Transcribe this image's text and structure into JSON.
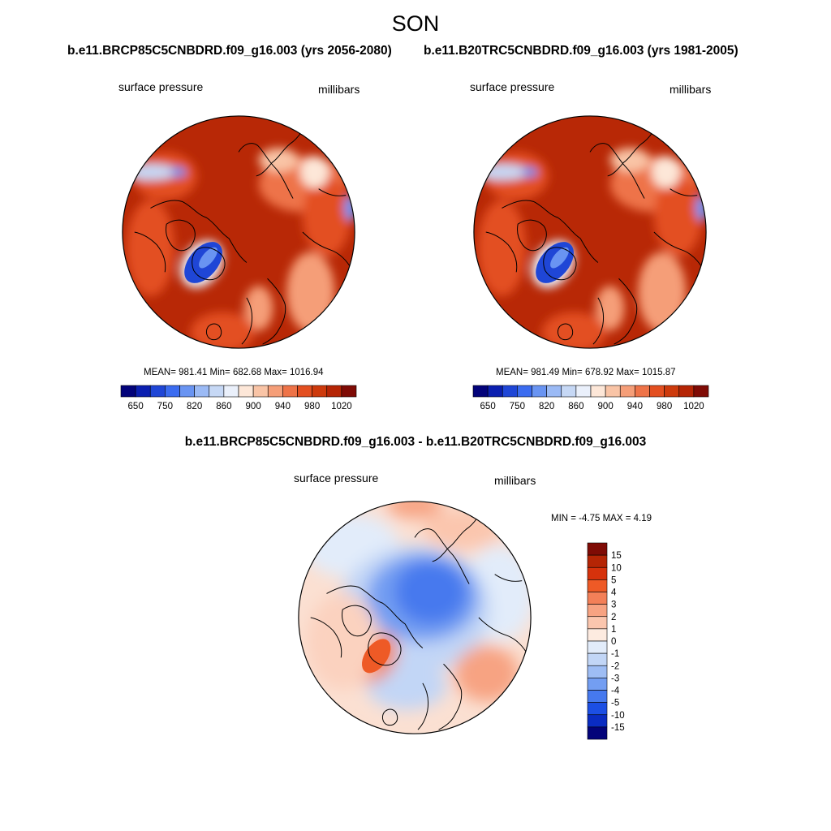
{
  "page": {
    "title": "SON",
    "panel_titles": [
      "b.e11.BRCP85C5CNBDRD.f09_g16.003 (yrs 2056-2080)",
      "b.e11.B20TRC5CNBDRD.f09_g16.003 (yrs 1981-2005)"
    ],
    "diff_title": "b.e11.BRCP85C5CNBDRD.f09_g16.003 - b.e11.B20TRC5CNBDRD.f09_g16.003"
  },
  "maps": [
    {
      "left_label": "surface pressure",
      "right_label": "millibars",
      "stats": "MEAN= 981.41  Min= 682.68  Max= 1016.94"
    },
    {
      "left_label": "surface pressure",
      "right_label": "millibars",
      "stats": "MEAN= 981.49  Min= 678.92  Max= 1015.87"
    }
  ],
  "diff_map": {
    "left_label": "surface pressure",
    "right_label": "millibars",
    "stats": "MIN =  -4.75 MAX =   4.19"
  },
  "chart_data": [
    {
      "type": "heatmap",
      "projection": "north polar stereographic",
      "variable": "surface pressure",
      "units": "millibars",
      "mean": 981.41,
      "min": 682.68,
      "max": 1016.94,
      "colorbar_levels": [
        650,
        700,
        750,
        800,
        820,
        840,
        860,
        880,
        900,
        920,
        940,
        960,
        980,
        1000,
        1020
      ],
      "colorbar_tick_labels": [
        "650",
        "750",
        "820",
        "860",
        "900",
        "940",
        "980",
        "1020"
      ],
      "colorbar_colors": [
        "#03037a",
        "#0b1fb0",
        "#1f46d6",
        "#3b6cf0",
        "#6994f2",
        "#9bbaf5",
        "#c6d8f5",
        "#eaf0fb",
        "#fde7d8",
        "#f9c4a6",
        "#f59e78",
        "#ee7348",
        "#e34f20",
        "#cd3a0c",
        "#b52505",
        "#7f0b05"
      ]
    },
    {
      "type": "heatmap",
      "projection": "north polar stereographic",
      "variable": "surface pressure",
      "units": "millibars",
      "mean": 981.49,
      "min": 678.92,
      "max": 1015.87,
      "colorbar_levels": [
        650,
        700,
        750,
        800,
        820,
        840,
        860,
        880,
        900,
        920,
        940,
        960,
        980,
        1000,
        1020
      ],
      "colorbar_tick_labels": [
        "650",
        "750",
        "820",
        "860",
        "900",
        "940",
        "980",
        "1020"
      ],
      "colorbar_colors": [
        "#03037a",
        "#0b1fb0",
        "#1f46d6",
        "#3b6cf0",
        "#6994f2",
        "#9bbaf5",
        "#c6d8f5",
        "#eaf0fb",
        "#fde7d8",
        "#f9c4a6",
        "#f59e78",
        "#ee7348",
        "#e34f20",
        "#cd3a0c",
        "#b52505",
        "#7f0b05"
      ]
    },
    {
      "type": "heatmap",
      "projection": "north polar stereographic",
      "variable": "surface pressure difference",
      "units": "millibars",
      "min": -4.75,
      "max": 4.19,
      "colorbar_levels": [
        15,
        10,
        5,
        4,
        3,
        2,
        1,
        0,
        -1,
        -2,
        -3,
        -4,
        -5,
        -10,
        -15
      ],
      "colorbar_tick_labels": [
        "15",
        "10",
        "5",
        "4",
        "3",
        "2",
        "1",
        "0",
        "-1",
        "-2",
        "-3",
        "-4",
        "-5",
        "-10",
        "-15"
      ],
      "colorbar_colors": [
        "#7f0b05",
        "#b52505",
        "#d6320c",
        "#ee5a26",
        "#f38058",
        "#f7a382",
        "#fbc6ae",
        "#fdebe0",
        "#e2ecfa",
        "#c2d6f6",
        "#9ebdf4",
        "#739ef2",
        "#4679ee",
        "#1c4fe4",
        "#0a2cc2",
        "#03037a"
      ]
    }
  ]
}
